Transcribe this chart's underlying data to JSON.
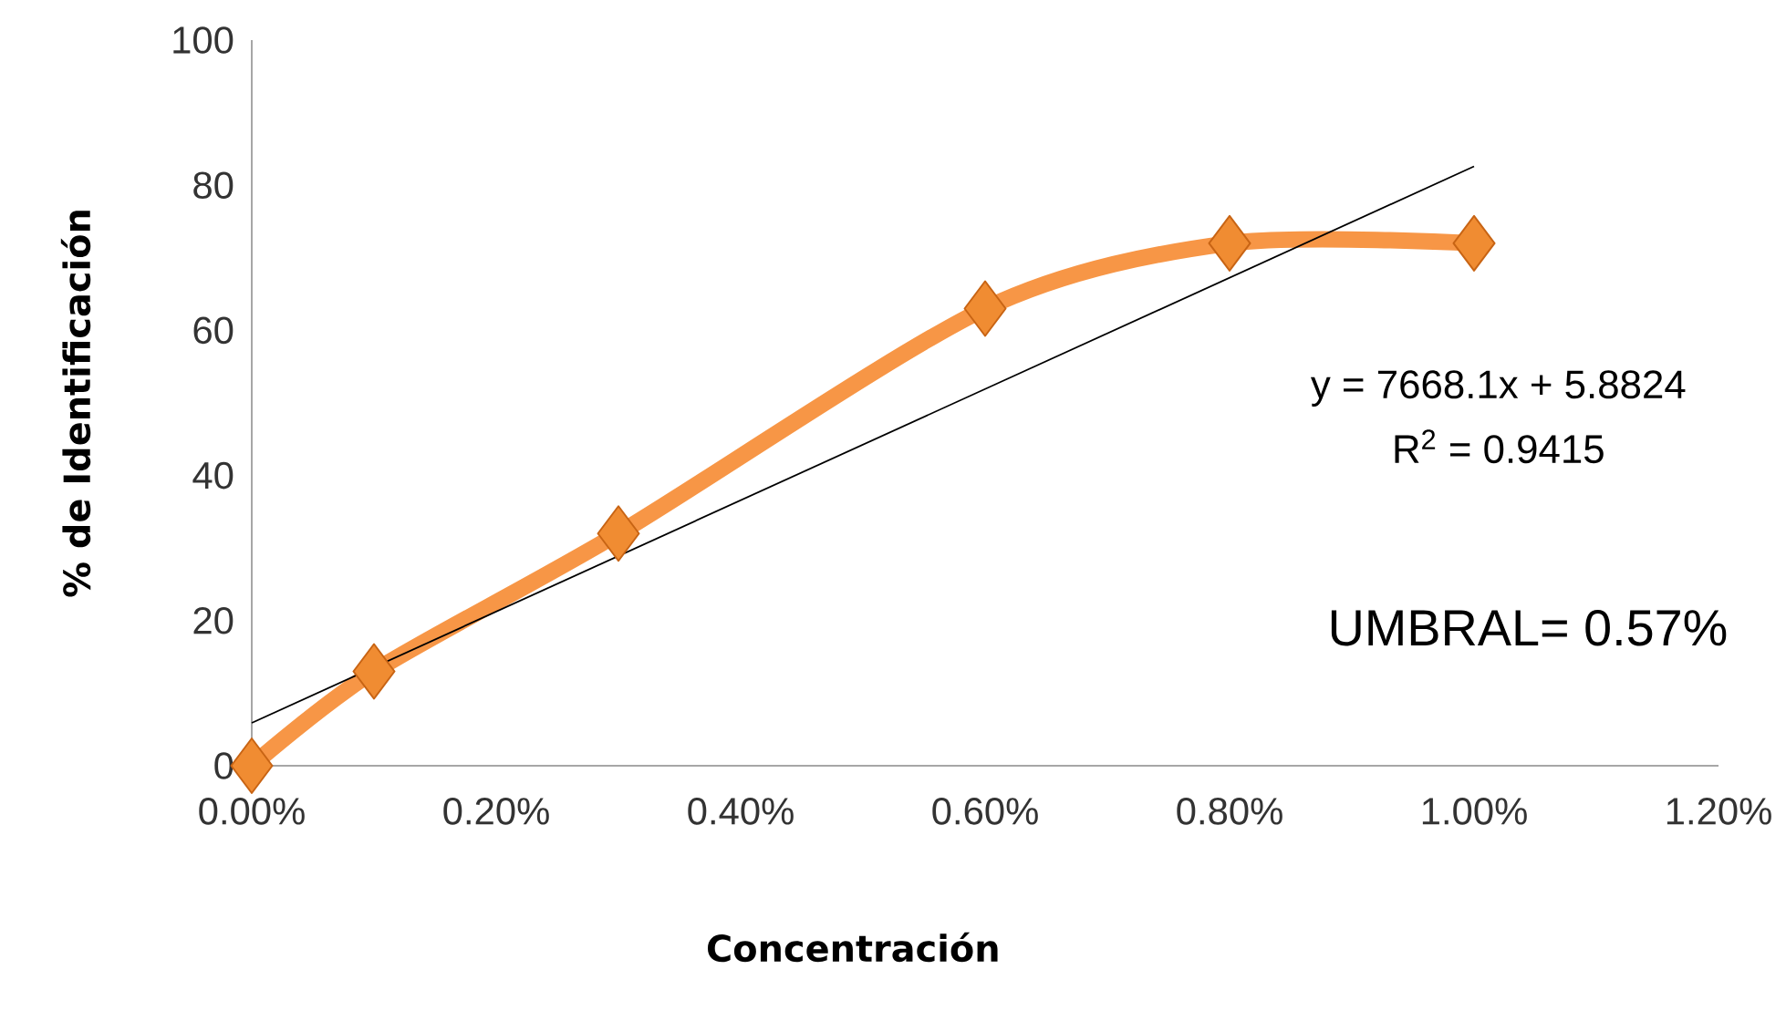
{
  "chart_data": {
    "type": "line",
    "xlabel": "Concentración",
    "ylabel": "% de Identificación",
    "x": [
      0,
      0.1,
      0.3,
      0.6,
      0.8,
      1.0
    ],
    "series": [
      {
        "color": "#f79646",
        "values": [
          0,
          13,
          32,
          63,
          72,
          72
        ],
        "marker": "diamond"
      },
      {
        "type": "line",
        "color": "#000000",
        "x": [
          0,
          1.0
        ],
        "values": [
          5.9,
          82.6
        ],
        "marker": "none"
      }
    ],
    "xlim": [
      0,
      1.2
    ],
    "ylim": [
      0,
      100
    ],
    "xticks": [
      {
        "value": 0,
        "label": "0.00%"
      },
      {
        "value": 0.2,
        "label": "0.20%"
      },
      {
        "value": 0.4,
        "label": "0.40%"
      },
      {
        "value": 0.6,
        "label": "0.60%"
      },
      {
        "value": 0.8,
        "label": "0.80%"
      },
      {
        "value": 1.0,
        "label": "1.00%"
      },
      {
        "value": 1.2,
        "label": "1.20%"
      }
    ],
    "yticks": [
      0,
      20,
      40,
      60,
      80,
      100
    ],
    "annotations": [
      "y = 7668.1x + 5.8824",
      "R$^{2}$ = 0.9415",
      "UMBRAL= 0.57%"
    ]
  }
}
